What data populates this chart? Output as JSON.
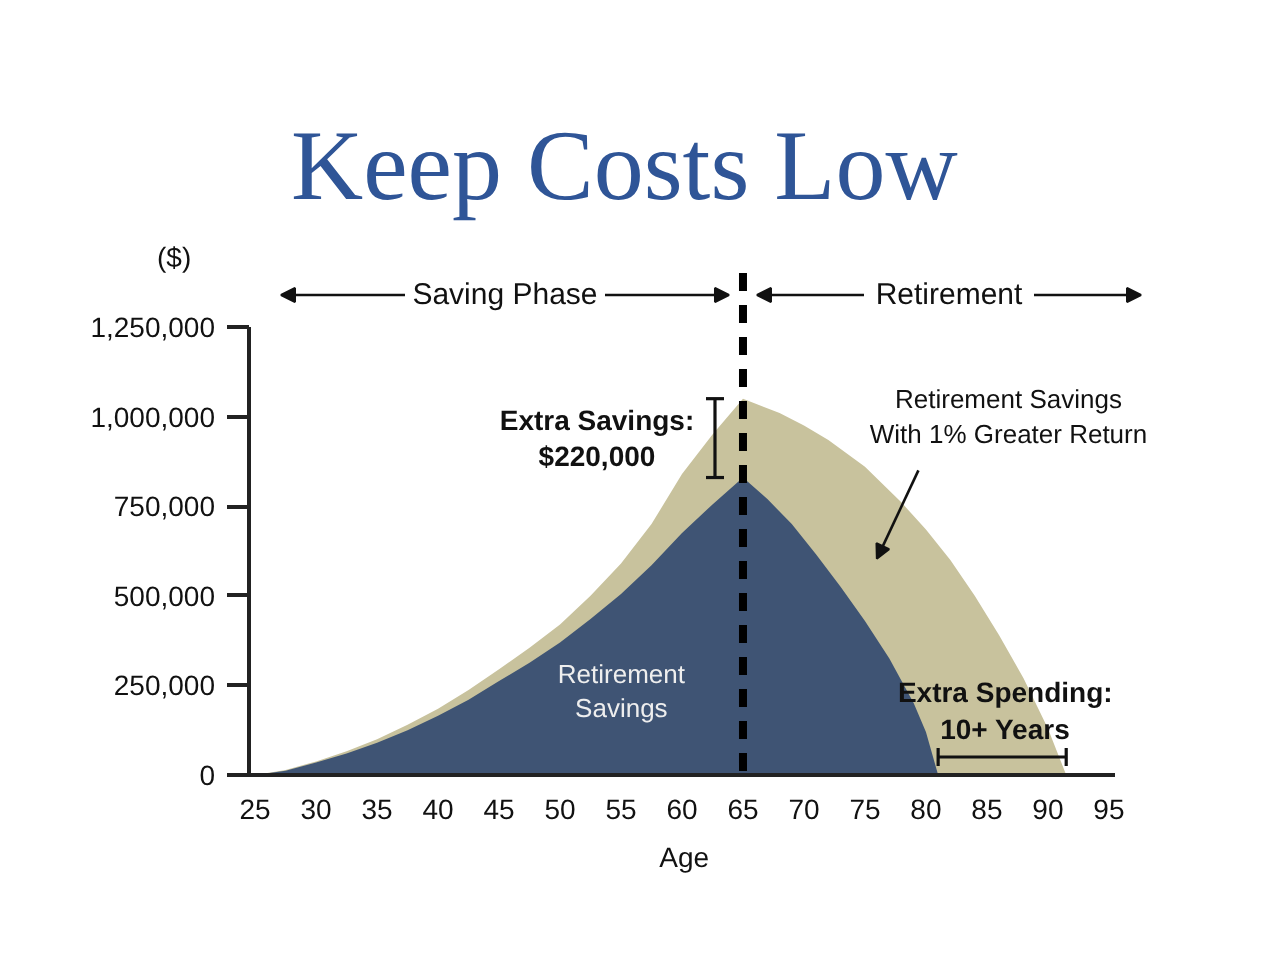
{
  "chart_data": {
    "type": "area",
    "title": "Keep Costs Low",
    "xlabel": "Age",
    "ylabel": "($)",
    "xlim": [
      24.5,
      95.5
    ],
    "xticks": [
      25,
      30,
      35,
      40,
      45,
      50,
      55,
      60,
      65,
      70,
      75,
      80,
      85,
      90,
      95
    ],
    "ylim": [
      0,
      1250000
    ],
    "yticks": [
      0,
      {
        "value": 250000,
        "label": "250,000"
      },
      {
        "value": 500000,
        "label": "500,000"
      },
      {
        "value": 750000,
        "label": "750,000"
      },
      {
        "value": 1000000,
        "label": "1,000,000"
      },
      {
        "value": 1250000,
        "label": "1,250,000"
      }
    ],
    "series": [
      {
        "name": "Retirement Savings With 1% Greater Return",
        "color": "#c8c29d",
        "x": [
          25,
          27.5,
          30,
          32.5,
          35,
          37.5,
          40,
          42.5,
          45,
          47.5,
          50,
          52.5,
          55,
          57.5,
          60,
          62.5,
          65,
          68,
          70,
          72,
          75,
          78,
          80,
          82,
          84,
          86,
          88,
          90,
          91.5
        ],
        "values": [
          0,
          14000,
          38000,
          66000,
          100000,
          140000,
          185000,
          237000,
          295000,
          355000,
          420000,
          500000,
          590000,
          700000,
          840000,
          950000,
          1050000,
          1010000,
          975000,
          935000,
          860000,
          760000,
          685000,
          600000,
          500000,
          390000,
          270000,
          130000,
          0
        ]
      },
      {
        "name": "Retirement Savings",
        "color": "#3f5474",
        "x": [
          25,
          27.5,
          30,
          32.5,
          35,
          37.5,
          40,
          42.5,
          45,
          47.5,
          50,
          52.5,
          55,
          57.5,
          60,
          62.5,
          65,
          67,
          69,
          71,
          73,
          75,
          77,
          79,
          80,
          81
        ],
        "values": [
          0,
          12000,
          35000,
          60000,
          90000,
          125000,
          165000,
          210000,
          262000,
          313000,
          370000,
          435000,
          505000,
          585000,
          675000,
          755000,
          830000,
          770000,
          700000,
          615000,
          525000,
          430000,
          325000,
          200000,
          120000,
          0
        ]
      }
    ],
    "ref_lines": [
      {
        "axis": "x",
        "value": 65,
        "color": "#000000",
        "line_style": "dashed"
      }
    ],
    "annotations": [
      "Saving Phase",
      "Retirement",
      {
        "text": "Extra Savings: $220,000",
        "x": 65,
        "y": 940000
      },
      {
        "text": "Extra Spending: 10+ Years",
        "x": 86.5,
        "y": 0
      }
    ]
  }
}
